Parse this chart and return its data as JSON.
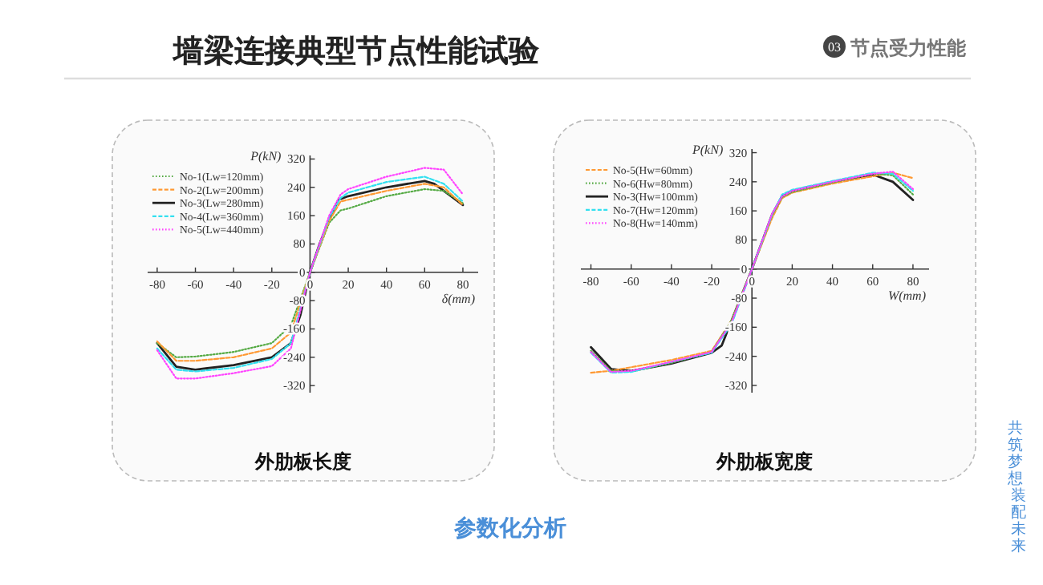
{
  "chart_data": [
    {
      "type": "line",
      "title": "外肋板长度",
      "xlabel": "δ(mm)",
      "ylabel": "P(kN)",
      "xlim": [
        -85,
        88
      ],
      "ylim": [
        -340,
        330
      ],
      "xticks": [
        -80,
        -60,
        -40,
        -20,
        0,
        20,
        40,
        60,
        80
      ],
      "yticks": [
        {
          "value": -320,
          "label": "-320"
        },
        {
          "value": -240,
          "label": "-240"
        },
        {
          "value": -160,
          "label": "-160"
        },
        {
          "value": -80,
          "label": "-80"
        },
        0,
        80,
        160,
        240,
        320
      ],
      "legend": "top left",
      "marker": "none",
      "series": [
        {
          "name": "No-1(Lw=120mm)",
          "color": "#55aa44",
          "line_style": "dotted",
          "x": [
            -80,
            -70,
            -60,
            -40,
            -20,
            -10,
            0,
            10,
            16,
            20,
            40,
            60,
            70,
            80
          ],
          "values": [
            -200,
            -240,
            -238,
            -225,
            -200,
            -150,
            0,
            140,
            175,
            180,
            215,
            235,
            230,
            195
          ]
        },
        {
          "name": "No-2(Lw=200mm)",
          "color": "#ff9933",
          "line_style": "dashed",
          "x": [
            -80,
            -70,
            -60,
            -40,
            -20,
            -10,
            0,
            10,
            16,
            20,
            40,
            60,
            70,
            80
          ],
          "values": [
            -195,
            -250,
            -250,
            -240,
            -215,
            -170,
            0,
            145,
            200,
            205,
            230,
            250,
            240,
            190
          ]
        },
        {
          "name": "No-3(Lw=280mm)",
          "color": "#222222",
          "line_style": "solid",
          "x": [
            -80,
            -70,
            -60,
            -40,
            -20,
            -10,
            -5,
            0,
            5,
            10,
            15,
            20,
            40,
            60,
            65,
            70,
            80
          ],
          "values": [
            -200,
            -267,
            -275,
            -262,
            -240,
            -200,
            -120,
            0,
            80,
            150,
            205,
            215,
            240,
            258,
            250,
            230,
            190
          ]
        },
        {
          "name": "No-4(Lw=360mm)",
          "color": "#33e0f0",
          "line_style": "dashed",
          "x": [
            -80,
            -70,
            -60,
            -40,
            -20,
            -10,
            0,
            10,
            16,
            20,
            40,
            60,
            70,
            80
          ],
          "values": [
            -215,
            -275,
            -280,
            -270,
            -245,
            -200,
            0,
            155,
            210,
            225,
            255,
            270,
            250,
            200
          ]
        },
        {
          "name": "No-5(Lw=440mm)",
          "color": "#ff44ff",
          "line_style": "dotted",
          "x": [
            -80,
            -70,
            -60,
            -40,
            -20,
            -10,
            0,
            10,
            16,
            20,
            40,
            60,
            70,
            80
          ],
          "values": [
            -220,
            -300,
            -300,
            -285,
            -265,
            -215,
            0,
            160,
            220,
            235,
            270,
            295,
            290,
            220
          ]
        }
      ]
    },
    {
      "type": "line",
      "title": "外肋板宽度",
      "xlabel": "W(mm)",
      "ylabel": "P(kN)",
      "xlim": [
        -85,
        88
      ],
      "ylim": [
        -340,
        330
      ],
      "xticks": [
        -80,
        -60,
        -40,
        -20,
        0,
        20,
        40,
        60,
        80
      ],
      "yticks": [
        {
          "value": -320,
          "label": "-320"
        },
        {
          "value": -240,
          "label": "-240"
        },
        {
          "value": -160,
          "label": "-160"
        },
        {
          "value": -80,
          "label": "-80"
        },
        0,
        80,
        160,
        240,
        320
      ],
      "legend": "top left",
      "marker": "none",
      "series": [
        {
          "name": "No-5(Hw=60mm)",
          "color": "#ff9933",
          "line_style": "dashed",
          "x": [
            -80,
            -70,
            -60,
            -40,
            -20,
            -10,
            0,
            10,
            15,
            20,
            40,
            60,
            70,
            80
          ],
          "values": [
            -285,
            -280,
            -270,
            -250,
            -225,
            -140,
            0,
            140,
            195,
            210,
            235,
            255,
            265,
            250
          ]
        },
        {
          "name": "No-6(Hw=80mm)",
          "color": "#55aa44",
          "line_style": "dotted",
          "x": [
            -80,
            -70,
            -60,
            -40,
            -20,
            -10,
            0,
            10,
            15,
            20,
            40,
            60,
            70,
            80
          ],
          "values": [
            -225,
            -280,
            -282,
            -258,
            -228,
            -140,
            0,
            148,
            198,
            212,
            238,
            262,
            258,
            205
          ]
        },
        {
          "name": "No-3(Hw=100mm)",
          "color": "#222222",
          "line_style": "solid",
          "x": [
            -80,
            -70,
            -60,
            -40,
            -20,
            -15,
            -10,
            -5,
            0,
            10,
            15,
            20,
            40,
            60,
            70,
            80
          ],
          "values": [
            -215,
            -275,
            -280,
            -260,
            -230,
            -210,
            -140,
            -70,
            0,
            150,
            200,
            215,
            240,
            260,
            240,
            190
          ]
        },
        {
          "name": "No-7(Hw=120mm)",
          "color": "#33e0f0",
          "line_style": "dashed",
          "x": [
            -80,
            -70,
            -60,
            -40,
            -20,
            -10,
            0,
            10,
            15,
            20,
            40,
            60,
            70,
            80
          ],
          "values": [
            -230,
            -285,
            -283,
            -255,
            -230,
            -150,
            0,
            150,
            205,
            218,
            242,
            265,
            262,
            215
          ]
        },
        {
          "name": "No-8(Hw=140mm)",
          "color": "#ff44ff",
          "line_style": "dotted",
          "x": [
            -80,
            -70,
            -60,
            -40,
            -20,
            -10,
            0,
            10,
            15,
            20,
            40,
            60,
            70,
            80
          ],
          "values": [
            -228,
            -283,
            -280,
            -255,
            -228,
            -145,
            0,
            152,
            200,
            215,
            240,
            262,
            268,
            220
          ]
        }
      ]
    },
    {
      "type": "other",
      "title": "墙梁连接典型节点性能试验",
      "subtitle": "节点受力性能",
      "annotations": [
        "03",
        "参数化分析",
        "共筑梦想",
        "装配未来"
      ]
    }
  ]
}
